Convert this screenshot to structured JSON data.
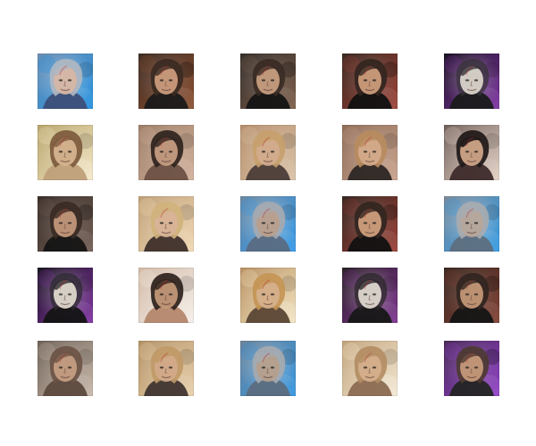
{
  "grid": {
    "rows": 5,
    "cols": 5,
    "tiles": [
      {
        "id": "r0c0",
        "bg": "#6d8fb3",
        "accent": "#1f8fe0",
        "skin": "#d7b6a3",
        "hair": "#b0b7c2",
        "shirt": "#3c4f78",
        "variant": "bright"
      },
      {
        "id": "r0c1",
        "bg": "#3f2f27",
        "accent": "#8a4c2c",
        "skin": "#cf9f7f",
        "hair": "#3b2a22",
        "shirt": "#1a1a1a",
        "variant": "dark"
      },
      {
        "id": "r0c2",
        "bg": "#35302d",
        "accent": "#7a5a46",
        "skin": "#caa181",
        "hair": "#3a2b24",
        "shirt": "#141414",
        "variant": "dark"
      },
      {
        "id": "r0c3",
        "bg": "#3a2a22",
        "accent": "#9a3f34",
        "skin": "#d0a07e",
        "hair": "#332520",
        "shirt": "#111111",
        "variant": "dark"
      },
      {
        "id": "r0c4",
        "bg": "#1b1420",
        "accent": "#7b2fa1",
        "skin": "#d7d1c8",
        "hair": "#37323a",
        "shirt": "#1a1a1a",
        "variant": "pale"
      },
      {
        "id": "r1c0",
        "bg": "#b7a46b",
        "accent": "#f4e6c4",
        "skin": "#d7b590",
        "hair": "#7d5a3d",
        "shirt": "#bfa07a",
        "variant": "light"
      },
      {
        "id": "r1c1",
        "bg": "#9d7d67",
        "accent": "#d1b09a",
        "skin": "#caa083",
        "hair": "#2f231d",
        "shirt": "#6c5144",
        "variant": "warm"
      },
      {
        "id": "r1c2",
        "bg": "#b68e6b",
        "accent": "#d8c2a6",
        "skin": "#d2ab8e",
        "hair": "#c7a06c",
        "shirt": "#4b3d38",
        "variant": "warm"
      },
      {
        "id": "r1c3",
        "bg": "#8e6c58",
        "accent": "#c7a18b",
        "skin": "#d4ab8c",
        "hair": "#b88b5e",
        "shirt": "#2d2724",
        "variant": "warm"
      },
      {
        "id": "r1c4",
        "bg": "#70605a",
        "accent": "#e6d2c6",
        "skin": "#d3a88a",
        "hair": "#201818",
        "shirt": "#3d2a2a",
        "variant": "dark-hair"
      },
      {
        "id": "r2c0",
        "bg": "#3a2f2a",
        "accent": "#6f5a50",
        "skin": "#c49a7c",
        "hair": "#3a2b24",
        "shirt": "#151515",
        "variant": "dark"
      },
      {
        "id": "r2c1",
        "bg": "#bfa079",
        "accent": "#f0d7b1",
        "skin": "#d8b398",
        "hair": "#d0b27c",
        "shirt": "#3f2f2b",
        "variant": "blonde"
      },
      {
        "id": "r2c2",
        "bg": "#6f8aa2",
        "accent": "#2f96e8",
        "skin": "#b9a08d",
        "hair": "#a6a9b0",
        "shirt": "#5a6c82",
        "variant": "bright"
      },
      {
        "id": "r2c3",
        "bg": "#352822",
        "accent": "#993d33",
        "skin": "#d3a27f",
        "hair": "#322520",
        "shirt": "#111111",
        "variant": "dark"
      },
      {
        "id": "r2c4",
        "bg": "#7d8c9a",
        "accent": "#2f98e3",
        "skin": "#b7a69a",
        "hair": "#a7abb0",
        "shirt": "#5e6f80",
        "variant": "bright"
      },
      {
        "id": "r3c0",
        "bg": "#1b1720",
        "accent": "#7d2e9f",
        "skin": "#ddd5ca",
        "hair": "#2e2a30",
        "shirt": "#141414",
        "variant": "pale"
      },
      {
        "id": "r3c1",
        "bg": "#d2b9a6",
        "accent": "#f5efe9",
        "skin": "#c79a7a",
        "hair": "#2d211c",
        "shirt": "#b4876d",
        "variant": "warm"
      },
      {
        "id": "r3c2",
        "bg": "#b89061",
        "accent": "#f2e3be",
        "skin": "#d6b18e",
        "hair": "#c49555",
        "shirt": "#5b4635",
        "variant": "light"
      },
      {
        "id": "r3c3",
        "bg": "#2a2227",
        "accent": "#7b2f8d",
        "skin": "#dbd4cc",
        "hair": "#2b2629",
        "shirt": "#171717",
        "variant": "pale"
      },
      {
        "id": "r3c4",
        "bg": "#3b2b24",
        "accent": "#7f3c2f",
        "skin": "#c79a79",
        "hair": "#312520",
        "shirt": "#151515",
        "variant": "dark"
      },
      {
        "id": "r4c0",
        "bg": "#6f6257",
        "accent": "#c7b6a8",
        "skin": "#c79f82",
        "hair": "#6b5445",
        "shirt": "#5d4a3e",
        "variant": "warm"
      },
      {
        "id": "r4c1",
        "bg": "#b39266",
        "accent": "#e8cfaa",
        "skin": "#d3aa8b",
        "hair": "#c09a67",
        "shirt": "#403530",
        "variant": "blonde"
      },
      {
        "id": "r4c2",
        "bg": "#6f8499",
        "accent": "#2f93de",
        "skin": "#b6a08c",
        "hair": "#a6aab0",
        "shirt": "#5c6d80",
        "variant": "bright"
      },
      {
        "id": "r4c3",
        "bg": "#c1a37a",
        "accent": "#f2e6d0",
        "skin": "#d6b08e",
        "hair": "#b38d63",
        "shirt": "#8b6b52",
        "variant": "light"
      },
      {
        "id": "r4c4",
        "bg": "#4a2c57",
        "accent": "#8f3ec7",
        "skin": "#c99c7c",
        "hair": "#4d3a32",
        "shirt": "#242424",
        "variant": "dark"
      }
    ]
  }
}
